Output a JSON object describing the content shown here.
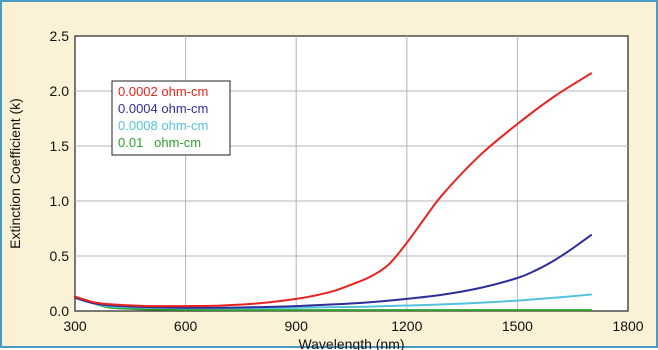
{
  "chart_data": {
    "type": "line",
    "title": "",
    "xlabel": "Wavelength (nm)",
    "ylabel": "Extinction Coefficient (k)",
    "xlim": [
      300,
      1800
    ],
    "ylim": [
      0,
      2.5
    ],
    "xticks": [
      300,
      600,
      900,
      1200,
      1500,
      1800
    ],
    "yticks": [
      0.0,
      0.5,
      1.0,
      1.5,
      2.0,
      2.5
    ],
    "xtick_labels": [
      "300",
      "600",
      "900",
      "1200",
      "1500",
      "1800"
    ],
    "ytick_labels": [
      "0.0",
      "0.5",
      "1.0",
      "1.5",
      "2.0",
      "2.5"
    ],
    "grid": true,
    "legend_position": "top-left",
    "series": [
      {
        "name": "0.0002 ohm-cm",
        "color": "#e8231e",
        "x": [
          300,
          350,
          400,
          500,
          600,
          700,
          800,
          900,
          950,
          1000,
          1050,
          1100,
          1150,
          1200,
          1250,
          1300,
          1400,
          1500,
          1600,
          1700
        ],
        "y": [
          0.13,
          0.08,
          0.06,
          0.045,
          0.045,
          0.05,
          0.07,
          0.11,
          0.14,
          0.18,
          0.24,
          0.31,
          0.42,
          0.62,
          0.85,
          1.07,
          1.42,
          1.7,
          1.95,
          2.16
        ]
      },
      {
        "name": "0.0004 ohm-cm",
        "color": "#2e2e9a",
        "x": [
          300,
          350,
          400,
          500,
          600,
          700,
          800,
          900,
          1000,
          1100,
          1200,
          1300,
          1400,
          1500,
          1550,
          1600,
          1650,
          1700
        ],
        "y": [
          0.12,
          0.07,
          0.05,
          0.035,
          0.03,
          0.03,
          0.035,
          0.045,
          0.06,
          0.08,
          0.11,
          0.15,
          0.21,
          0.3,
          0.37,
          0.46,
          0.57,
          0.69
        ]
      },
      {
        "name": "0.0008 ohm-cm",
        "color": "#55c2dc",
        "x": [
          300,
          350,
          400,
          500,
          600,
          700,
          800,
          900,
          1000,
          1100,
          1200,
          1300,
          1400,
          1500,
          1600,
          1700
        ],
        "y": [
          0.12,
          0.07,
          0.04,
          0.03,
          0.025,
          0.025,
          0.025,
          0.03,
          0.035,
          0.04,
          0.05,
          0.06,
          0.075,
          0.095,
          0.12,
          0.15
        ]
      },
      {
        "name": "0.01   ohm-cm",
        "color": "#2e9e2e",
        "x": [
          300,
          330,
          360,
          400,
          500,
          600,
          800,
          1000,
          1200,
          1400,
          1600,
          1700
        ],
        "y": [
          0.13,
          0.1,
          0.06,
          0.03,
          0.015,
          0.01,
          0.008,
          0.008,
          0.008,
          0.008,
          0.008,
          0.008
        ]
      }
    ]
  },
  "colors": {
    "background": "#fbf1d6",
    "border": "#4a9bc4",
    "plot_area": "#ffffff",
    "grid": "#b4b4b4"
  }
}
